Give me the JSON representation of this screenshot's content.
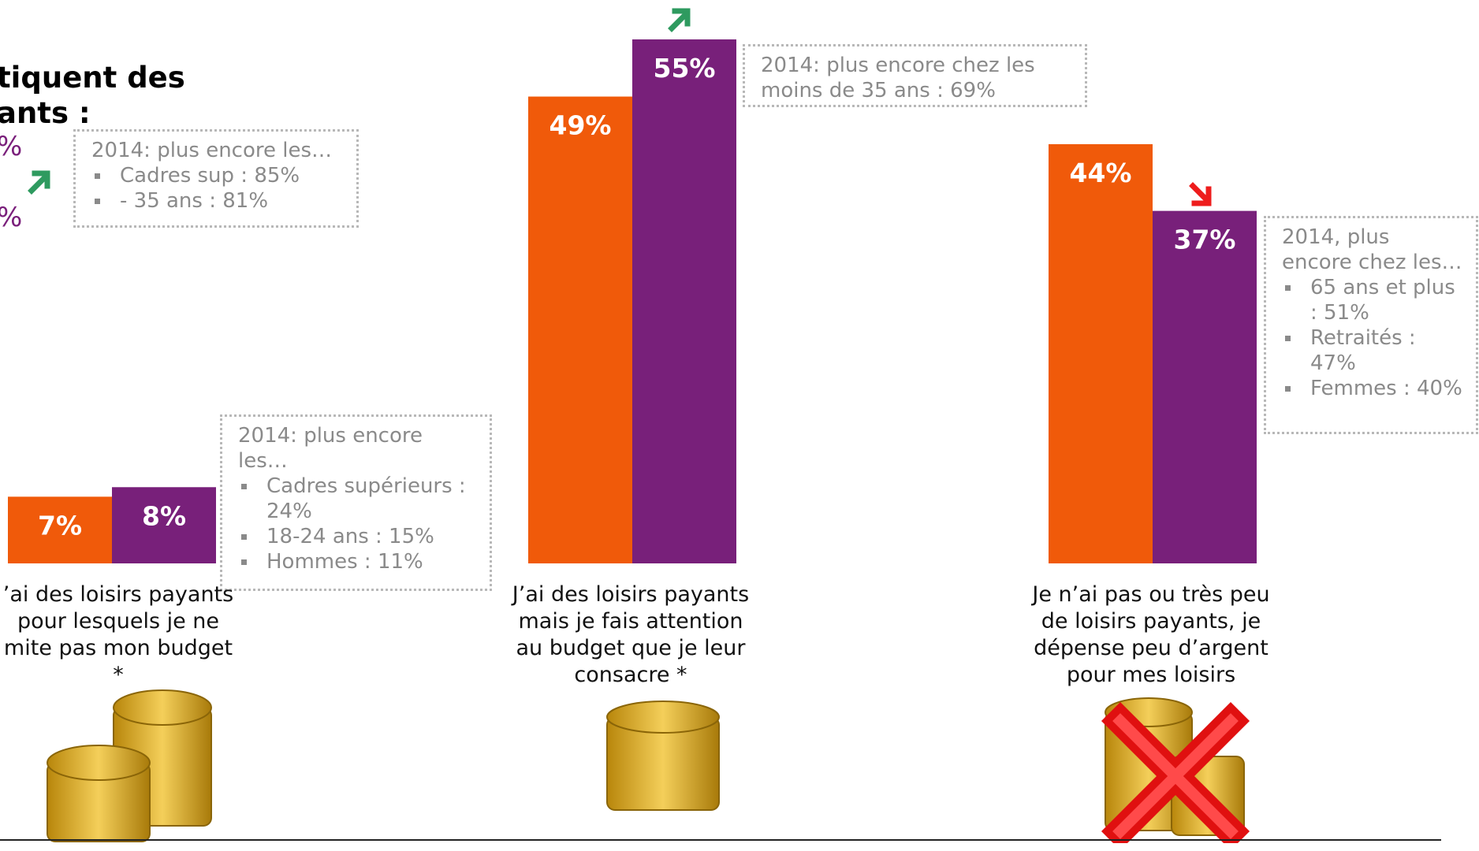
{
  "chart_data": {
    "type": "bar",
    "categories": [
      "J’ai des loisirs payants pour lesquels je ne limite pas mon budget *",
      "J’ai des loisirs payants mais je fais attention au budget que je leur consacre *",
      "Je n’ai pas ou très peu de loisirs payants, je dépense peu d’argent pour mes loisirs"
    ],
    "series": [
      {
        "values": [
          7,
          49,
          44
        ],
        "color": "#f05a0a"
      },
      {
        "values": [
          8,
          55,
          37
        ],
        "color": "#78207a"
      }
    ],
    "value_labels": [
      [
        "7%",
        "49%",
        "44%"
      ],
      [
        "8%",
        "55%",
        "37%"
      ]
    ],
    "ylim": [
      0,
      60
    ],
    "grid": false
  },
  "header": {
    "line1": "tiquent des",
    "line2": "ants :",
    "pct1": "%",
    "pct2": "%"
  },
  "labels": {
    "cat1": [
      "’ai des loisirs payants",
      "pour lesquels je ne",
      "mite pas mon budget",
      "*"
    ],
    "cat2": [
      "J’ai des loisirs payants",
      "mais je fais attention",
      "au budget que je leur",
      "consacre *"
    ],
    "cat3": [
      "Je n’ai pas ou très peu",
      "de loisirs payants, je",
      "dépense peu d’argent",
      "pour mes loisirs"
    ]
  },
  "notes": {
    "top_left": {
      "title": "2014: plus encore les…",
      "items": [
        "Cadres sup : 85%",
        "- 35 ans : 81%"
      ]
    },
    "cat1": {
      "title": "2014: plus encore les…",
      "items": [
        "Cadres supérieurs : 24%",
        "18-24 ans : 15%",
        "Hommes : 11%"
      ]
    },
    "cat2": {
      "title": "2014: plus encore chez les moins de 35 ans : 69%"
    },
    "cat3": {
      "title": "2014, plus encore chez les…",
      "items": [
        "65 ans et plus : 51%",
        "Retraités : 47%",
        "Femmes : 40%"
      ]
    }
  },
  "icons": {
    "trend_up": "arrow-up-right-icon",
    "trend_down": "arrow-down-right-icon",
    "coins": "coin-stack-icon",
    "cross": "red-cross-icon"
  },
  "colors": {
    "up_arrow": "#2e9a5f",
    "down_arrow": "#ee1c1c",
    "orange": "#f05a0a",
    "purple": "#78207a",
    "gold": "#e6b530"
  }
}
